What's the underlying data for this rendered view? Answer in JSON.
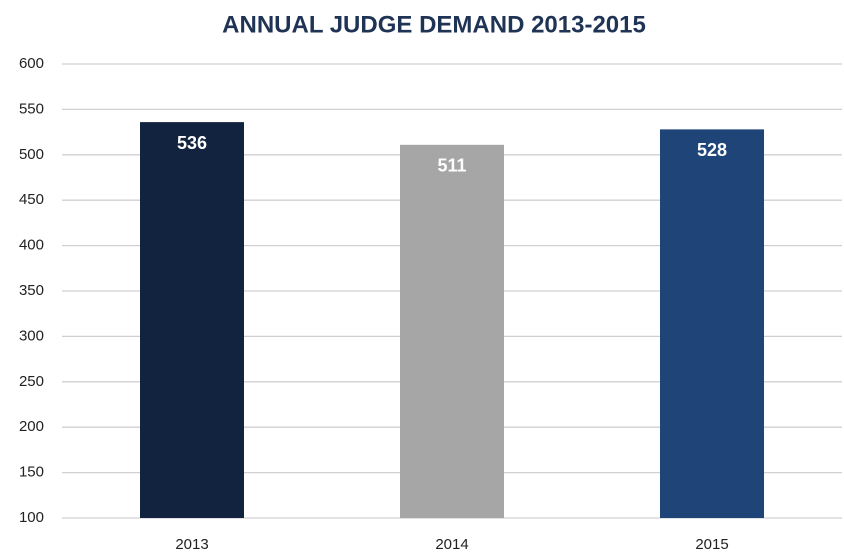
{
  "chart_data": {
    "type": "bar",
    "title": "ANNUAL JUDGE DEMAND 2013-2015",
    "categories": [
      "2013",
      "2014",
      "2015"
    ],
    "values": [
      536,
      511,
      528
    ],
    "colors": [
      "#12233f",
      "#a6a6a6",
      "#1f4477"
    ],
    "ylim": [
      100,
      600
    ],
    "yticks": [
      100,
      150,
      200,
      250,
      300,
      350,
      400,
      450,
      500,
      550,
      600
    ],
    "grid": true
  }
}
